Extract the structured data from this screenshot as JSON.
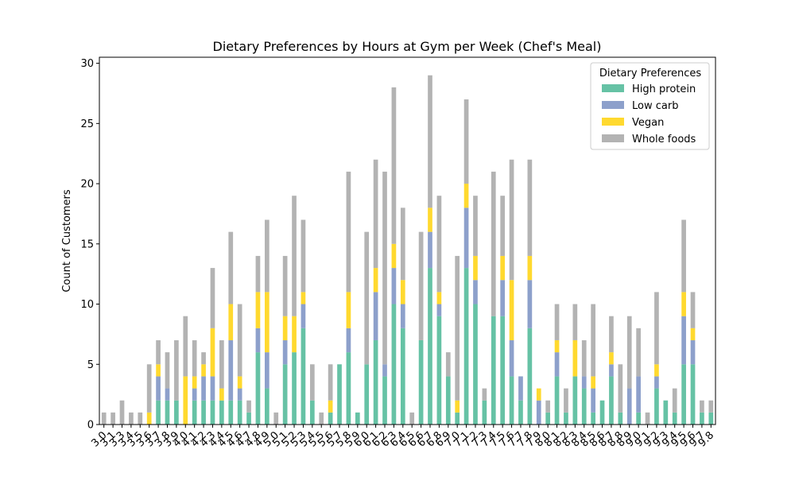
{
  "chart_data": {
    "type": "bar",
    "stacked": true,
    "title": "Dietary Preferences by Hours at Gym per Week (Chef's Meal)",
    "xlabel": "",
    "ylabel": "Count of Customers",
    "ylim": [
      0,
      30.5
    ],
    "yticks": [
      0,
      5,
      10,
      15,
      20,
      25,
      30
    ],
    "grid": false,
    "legend": {
      "title": "Dietary Preferences",
      "placement": "upper right"
    },
    "colors": [
      "#66c2a5",
      "#8da0cb",
      "#ffd92f",
      "#b3b3b3"
    ],
    "categories": [
      "3.0",
      "3.1",
      "3.3",
      "3.4",
      "3.5",
      "3.6",
      "3.7",
      "3.8",
      "3.9",
      "4.0",
      "4.1",
      "4.2",
      "4.3",
      "4.4",
      "4.5",
      "4.6",
      "4.7",
      "4.8",
      "4.9",
      "5.0",
      "5.1",
      "5.2",
      "5.3",
      "5.4",
      "5.5",
      "5.6",
      "5.7",
      "5.8",
      "5.9",
      "6.0",
      "6.1",
      "6.2",
      "6.3",
      "6.4",
      "6.5",
      "6.6",
      "6.7",
      "6.8",
      "6.9",
      "7.0",
      "7.1",
      "7.2",
      "7.3",
      "7.4",
      "7.5",
      "7.6",
      "7.7",
      "7.8",
      "7.9",
      "8.0",
      "8.1",
      "8.2",
      "8.3",
      "8.4",
      "8.5",
      "8.6",
      "8.7",
      "8.8",
      "8.9",
      "9.0",
      "9.1",
      "9.2",
      "9.3",
      "9.4",
      "9.5",
      "9.6",
      "9.7",
      "9.8"
    ],
    "xtick_labels": [
      "3.0",
      "3.1",
      "3.3",
      "3.4",
      "3.5",
      "3.6",
      "3.7",
      "3.8",
      "3.9",
      "4.0",
      "4.1",
      "4.2",
      "4.3",
      "4.4",
      "4.5",
      "4.6",
      "4.7",
      "4.8",
      "4.9",
      "5.0",
      "5.1",
      "5.2",
      "5.3",
      "5.4",
      "5.5",
      "5.6",
      "5.7",
      "5.8",
      "5.9",
      "6.0",
      "6.1",
      "6.2",
      "6.3",
      "6.4",
      "6.5",
      "6.6",
      "6.7",
      "6.8",
      "6.9",
      "7.0",
      "7.1",
      "7.2",
      "7.3",
      "7.4",
      "7.5",
      "7.6",
      "7.7",
      "7.8",
      "7.9",
      "8.0",
      "8.1",
      "8.2",
      "8.3",
      "8.4",
      "8.5",
      "8.6",
      "8.7",
      "8.8",
      "8.9",
      "9.0",
      "9.1",
      "9.2",
      "9.3",
      "9.4",
      "9.5",
      "9.6",
      "9.7",
      "9.8"
    ],
    "series": [
      {
        "name": "High protein",
        "values": [
          0,
          0,
          0,
          0,
          0,
          0,
          2,
          2,
          2,
          0,
          2,
          2,
          2,
          2,
          2,
          2,
          1,
          6,
          3,
          0,
          5,
          6,
          8,
          2,
          0,
          1,
          5,
          6,
          1,
          5,
          7,
          4,
          10,
          8,
          0,
          7,
          13,
          9,
          4,
          1,
          13,
          10,
          2,
          9,
          9,
          4,
          2,
          8,
          0,
          1,
          4,
          1,
          4,
          3,
          1,
          2,
          4,
          1,
          0,
          1,
          0,
          3,
          2,
          1,
          5,
          5,
          1,
          1
        ]
      },
      {
        "name": "Low carb",
        "values": [
          0,
          0,
          0,
          0,
          0,
          0,
          2,
          1,
          0,
          0,
          1,
          2,
          2,
          0,
          5,
          1,
          0,
          2,
          3,
          0,
          2,
          0,
          2,
          0,
          0,
          0,
          0,
          2,
          0,
          0,
          4,
          1,
          3,
          2,
          0,
          0,
          3,
          1,
          0,
          0,
          5,
          2,
          0,
          0,
          3,
          3,
          2,
          4,
          2,
          0,
          2,
          0,
          0,
          1,
          2,
          0,
          1,
          0,
          3,
          3,
          0,
          1,
          0,
          0,
          4,
          2,
          0,
          0
        ]
      },
      {
        "name": "Vegan",
        "values": [
          0,
          0,
          0,
          0,
          0,
          1,
          1,
          0,
          0,
          4,
          1,
          1,
          4,
          1,
          3,
          1,
          0,
          3,
          5,
          0,
          2,
          3,
          1,
          0,
          0,
          1,
          0,
          3,
          0,
          0,
          2,
          0,
          2,
          2,
          0,
          0,
          2,
          1,
          0,
          1,
          2,
          2,
          0,
          0,
          2,
          5,
          0,
          2,
          1,
          0,
          1,
          0,
          3,
          0,
          1,
          0,
          1,
          0,
          0,
          0,
          0,
          1,
          0,
          0,
          2,
          1,
          0,
          0
        ]
      },
      {
        "name": "Whole foods",
        "values": [
          1,
          1,
          2,
          1,
          1,
          4,
          2,
          3,
          5,
          5,
          3,
          1,
          5,
          4,
          6,
          6,
          1,
          3,
          6,
          1,
          5,
          10,
          6,
          3,
          1,
          3,
          0,
          10,
          0,
          11,
          9,
          16,
          13,
          6,
          1,
          9,
          11,
          8,
          2,
          12,
          7,
          5,
          1,
          12,
          5,
          10,
          0,
          8,
          0,
          1,
          3,
          2,
          3,
          3,
          6,
          0,
          3,
          4,
          6,
          4,
          1,
          6,
          0,
          2,
          6,
          3,
          1,
          1
        ]
      }
    ]
  }
}
